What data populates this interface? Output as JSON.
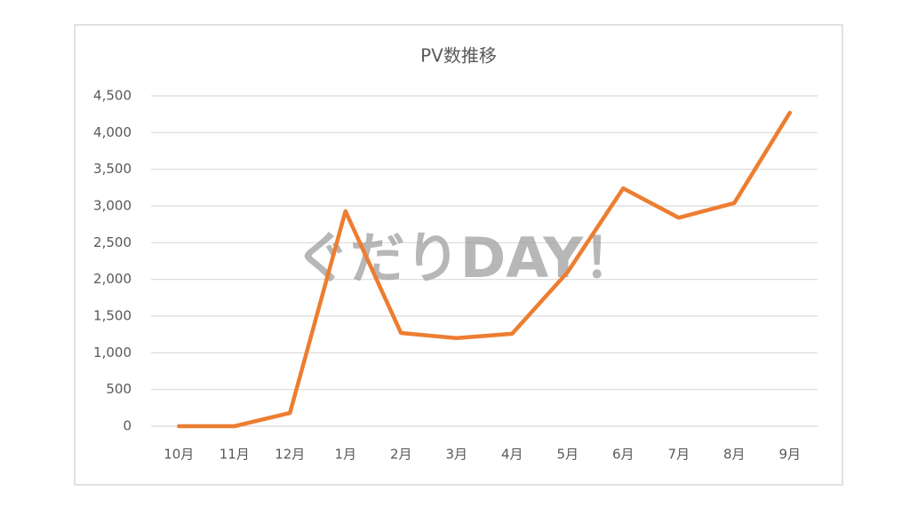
{
  "chart_data": {
    "type": "line",
    "title": "PV数推移",
    "watermark": "ぐだりDAY！",
    "categories": [
      "10月",
      "11月",
      "12月",
      "1月",
      "2月",
      "3月",
      "4月",
      "5月",
      "6月",
      "7月",
      "8月",
      "9月"
    ],
    "series": [
      {
        "name": "PV",
        "color": "#ed7d31",
        "values": [
          0,
          0,
          180,
          2930,
          1270,
          1200,
          1260,
          2100,
          3240,
          2840,
          3040,
          4270
        ]
      }
    ],
    "ylim": [
      0,
      4500
    ],
    "yticks": [
      0,
      500,
      {
        "value": 1000,
        "label": "1,000"
      },
      {
        "value": 1500,
        "label": "1,500"
      },
      {
        "value": 2000,
        "label": "2,000"
      },
      {
        "value": 2500,
        "label": "2,500"
      },
      {
        "value": 3000,
        "label": "3,000"
      },
      {
        "value": 3500,
        "label": "3,500"
      },
      {
        "value": 4000,
        "label": "4,000"
      },
      {
        "value": 4500,
        "label": "4,500"
      }
    ],
    "grid": true
  }
}
